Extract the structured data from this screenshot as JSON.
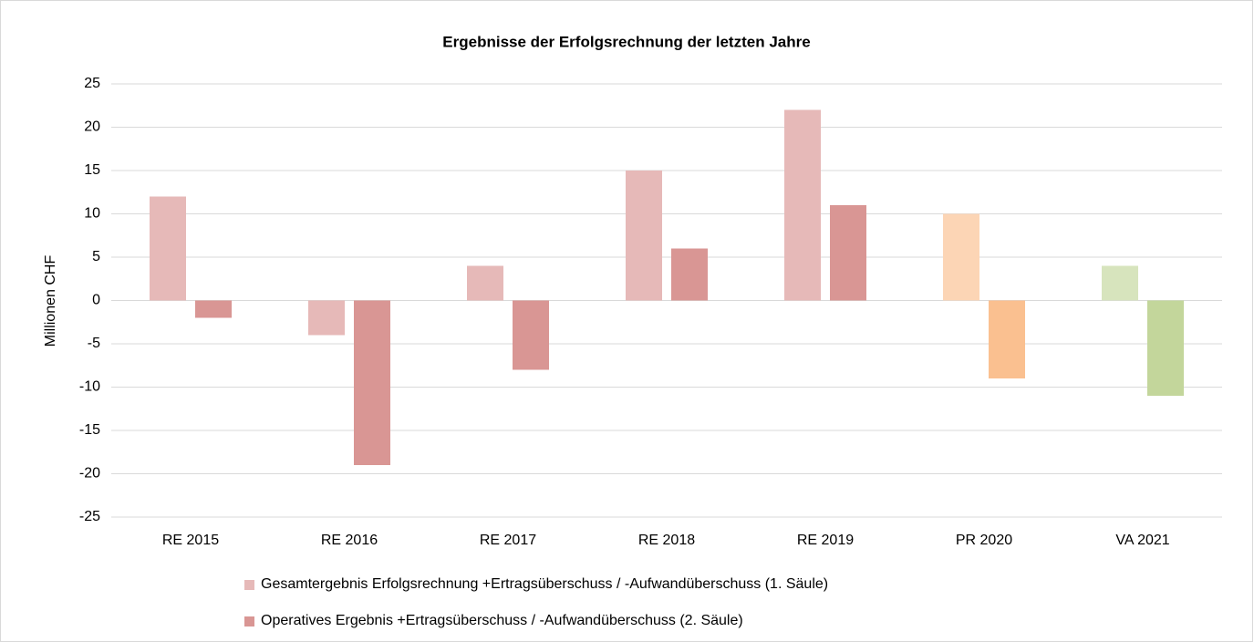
{
  "chart_data": {
    "type": "bar",
    "title": "Ergebnisse der Erfolgsrechnung der letzten Jahre",
    "y_label": "Millionen CHF",
    "categories": [
      "RE 2015",
      "RE 2016",
      "RE 2017",
      "RE 2018",
      "RE 2019",
      "PR 2020",
      "VA 2021"
    ],
    "series": [
      {
        "name": "Gesamtergebnis Erfolgsrechnung +Ertragsüberschuss / -Aufwandüberschuss (1. Säule)",
        "color": "#e6b9b8",
        "colors": [
          "#e6b9b8",
          "#e6b9b8",
          "#e6b9b8",
          "#e6b9b8",
          "#e6b9b8",
          "#fcd5b5",
          "#d7e4bd"
        ],
        "values": [
          12,
          -4,
          4,
          15,
          22,
          10,
          4
        ]
      },
      {
        "name": "Operatives Ergebnis +Ertragsüberschuss / -Aufwandüberschuss (2. Säule)",
        "color": "#d99694",
        "colors": [
          "#d99694",
          "#d99694",
          "#d99694",
          "#d99694",
          "#d99694",
          "#fac090",
          "#c3d69b"
        ],
        "values": [
          -2,
          -19,
          -8,
          6,
          11,
          -9,
          -11
        ]
      }
    ],
    "ylim": [
      -25,
      25
    ],
    "yticks": [
      -25,
      -20,
      -15,
      -10,
      -5,
      0,
      5,
      10,
      15,
      20,
      25
    ],
    "grid": true,
    "legend": "bottom"
  }
}
